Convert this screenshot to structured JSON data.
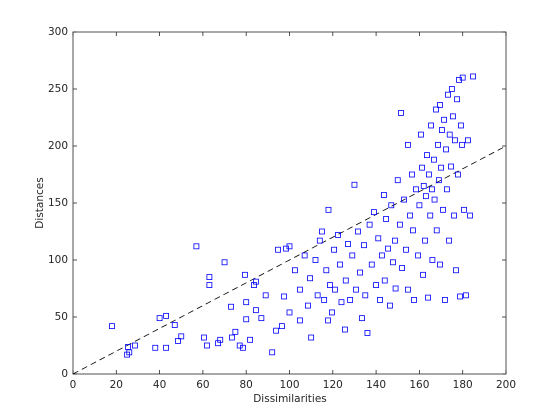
{
  "chart_data": {
    "type": "scatter",
    "xlabel": "Dissimilarities",
    "ylabel": "Distances",
    "xlim": [
      0,
      200
    ],
    "ylim": [
      0,
      300
    ],
    "xticks": [
      0,
      20,
      40,
      60,
      80,
      100,
      120,
      140,
      160,
      180,
      200
    ],
    "yticks": [
      0,
      50,
      100,
      150,
      200,
      250,
      300
    ],
    "grid": false,
    "marker": "square",
    "color": "#0000ff",
    "x": [
      18,
      25.4,
      26,
      25,
      28.6,
      38,
      40,
      43,
      43,
      47,
      48.5,
      50,
      57,
      60.5,
      61.9,
      63,
      63,
      67,
      68,
      70,
      73.4,
      73,
      75,
      77,
      79.4,
      78.5,
      80,
      80,
      81.8,
      83.6,
      84.5,
      84.5,
      87,
      89,
      92,
      93.8,
      94.7,
      96.5,
      97.5,
      98.4,
      100,
      100,
      102.5,
      104.8,
      104.8,
      107,
      108.5,
      109.5,
      110,
      112,
      113,
      114,
      115,
      116,
      117,
      117.8,
      118.7,
      119.6,
      120.6,
      118,
      121,
      122.4,
      123.3,
      124,
      125.6,
      126,
      127,
      128,
      129,
      130,
      130.7,
      131.6,
      132.6,
      133.5,
      134.4,
      135,
      136,
      137,
      138,
      139,
      140,
      141,
      141.8,
      142.7,
      143.6,
      144,
      144.6,
      145.5,
      146.4,
      147,
      147.8,
      148.7,
      149,
      150,
      151,
      151.5,
      152,
      152.9,
      153.8,
      154.7,
      154.7,
      155.7,
      156.6,
      157,
      157.5,
      158.4,
      159.4,
      160,
      160.7,
      161.2,
      161.7,
      162,
      162.6,
      163,
      163.5,
      164,
      164.4,
      165,
      165.4,
      165.8,
      166,
      166.7,
      167,
      167.7,
      168,
      168.6,
      169,
      169.5,
      169.5,
      170,
      170.4,
      170.9,
      171.4,
      171.8,
      172.3,
      172.7,
      173.2,
      173.7,
      174,
      174.6,
      175,
      175.5,
      176,
      176.4,
      176.9,
      177.4,
      177.8,
      178.3,
      178.8,
      179.2,
      179.7,
      180,
      180.6,
      181.5,
      182.4,
      183.4,
      184.8
    ],
    "values": [
      42,
      23.7,
      19,
      17,
      25,
      23,
      49,
      51,
      23,
      43,
      29,
      33,
      112,
      32,
      25,
      85,
      78,
      27,
      30,
      98,
      32,
      59,
      37,
      25,
      87,
      23,
      48,
      63,
      30,
      78,
      81,
      56,
      49,
      69,
      19,
      38,
      109,
      42,
      68,
      110,
      112,
      54,
      91,
      47,
      74,
      104,
      60,
      84,
      32,
      100,
      69,
      117,
      125,
      65,
      91,
      47,
      78,
      54,
      109,
      144,
      74,
      122,
      96,
      63,
      39,
      82,
      114,
      65,
      104,
      166,
      74,
      125,
      89,
      49,
      113,
      69,
      36,
      131,
      96,
      142,
      78,
      119,
      65,
      104,
      157,
      82,
      136,
      110,
      60,
      148,
      98,
      117,
      75,
      170,
      131,
      229,
      93,
      153,
      109,
      201,
      74,
      139,
      175,
      126,
      65,
      162,
      104,
      148,
      210,
      181,
      87,
      165,
      117,
      156,
      192,
      67,
      175,
      139,
      218,
      162,
      100,
      188,
      153,
      232,
      126,
      201,
      170,
      236,
      96,
      181,
      214,
      144,
      223,
      65,
      197,
      162,
      245,
      117,
      210,
      182,
      250,
      226,
      139,
      205,
      91,
      241,
      175,
      258,
      68,
      218,
      201,
      260,
      144,
      69,
      205,
      139,
      261
    ],
    "reference_line": {
      "x": [
        0,
        200
      ],
      "values": [
        0,
        200
      ],
      "style": "dashed",
      "color": "#000000"
    }
  }
}
